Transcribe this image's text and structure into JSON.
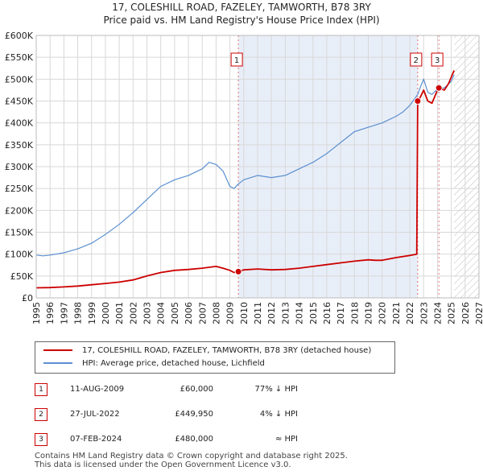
{
  "title": "17, COLESHILL ROAD, FAZELEY, TAMWORTH, B78 3RY",
  "subtitle": "Price paid vs. HM Land Registry's House Price Index (HPI)",
  "chart_data": {
    "type": "line",
    "title": "17, COLESHILL ROAD, FAZELEY, TAMWORTH, B78 3RY",
    "subtitle": "Price paid vs. HM Land Registry's House Price Index (HPI)",
    "xlabel": "",
    "ylabel": "",
    "xlim": [
      1995,
      2027
    ],
    "ylim": [
      0,
      600000
    ],
    "x_ticks": [
      1995,
      1996,
      1997,
      1998,
      1999,
      2000,
      2001,
      2002,
      2003,
      2004,
      2005,
      2006,
      2007,
      2008,
      2009,
      2010,
      2011,
      2012,
      2013,
      2014,
      2015,
      2016,
      2017,
      2018,
      2019,
      2020,
      2021,
      2022,
      2023,
      2024,
      2025,
      2026,
      2027
    ],
    "y_ticks": [
      {
        "value": 0,
        "label": "£0"
      },
      {
        "value": 50000,
        "label": "£50K"
      },
      {
        "value": 100000,
        "label": "£100K"
      },
      {
        "value": 150000,
        "label": "£150K"
      },
      {
        "value": 200000,
        "label": "£200K"
      },
      {
        "value": 250000,
        "label": "£250K"
      },
      {
        "value": 300000,
        "label": "£300K"
      },
      {
        "value": 350000,
        "label": "£350K"
      },
      {
        "value": 400000,
        "label": "£400K"
      },
      {
        "value": 450000,
        "label": "£450K"
      },
      {
        "value": 500000,
        "label": "£500K"
      },
      {
        "value": 550000,
        "label": "£550K"
      },
      {
        "value": 600000,
        "label": "£600K"
      }
    ],
    "grid": true,
    "shaded_region": [
      2009.6,
      2022.57
    ],
    "hatched_from": 2025.2,
    "series": [
      {
        "name": "17, COLESHILL ROAD, FAZELEY, TAMWORTH, B78 3RY (detached house)",
        "color": "#cc0000",
        "x": [
          1995.0,
          1996.0,
          1997.0,
          1998.0,
          1999.0,
          2000.0,
          2001.0,
          2002.0,
          2003.0,
          2004.0,
          2005.0,
          2006.0,
          2007.0,
          2008.0,
          2008.5,
          2009.0,
          2009.3,
          2009.61,
          2010.0,
          2011.0,
          2012.0,
          2013.0,
          2014.0,
          2015.0,
          2016.0,
          2017.0,
          2018.0,
          2019.0,
          2019.5,
          2020.0,
          2021.0,
          2022.0,
          2022.5,
          2022.57,
          2022.7,
          2023.0,
          2023.3,
          2023.6,
          2024.0,
          2024.1,
          2024.5,
          2024.8,
          2025.2
        ],
        "values": [
          23000,
          23500,
          25000,
          27000,
          30000,
          33000,
          36000,
          41000,
          50000,
          58000,
          63000,
          65000,
          68000,
          72000,
          68000,
          63000,
          58000,
          60000,
          64000,
          66000,
          64000,
          65000,
          68000,
          72000,
          76000,
          80000,
          84000,
          87000,
          86000,
          86000,
          92000,
          97000,
          100000,
          449950,
          455000,
          475000,
          450000,
          445000,
          475000,
          480000,
          475000,
          490000,
          520000
        ]
      },
      {
        "name": "HPI: Average price, detached house, Lichfield",
        "color": "#5b8fd0",
        "x": [
          1995.0,
          1995.5,
          1996.0,
          1997.0,
          1998.0,
          1999.0,
          2000.0,
          2001.0,
          2002.0,
          2003.0,
          2004.0,
          2005.0,
          2006.0,
          2007.0,
          2007.5,
          2008.0,
          2008.5,
          2009.0,
          2009.3,
          2009.6,
          2010.0,
          2011.0,
          2012.0,
          2013.0,
          2014.0,
          2015.0,
          2016.0,
          2017.0,
          2018.0,
          2019.0,
          2020.0,
          2021.0,
          2021.5,
          2022.0,
          2022.57,
          2022.8,
          2023.0,
          2023.3,
          2023.6,
          2024.0,
          2024.1,
          2024.5,
          2025.0,
          2025.2
        ],
        "values": [
          98000,
          96000,
          98000,
          103000,
          112000,
          125000,
          145000,
          168000,
          195000,
          225000,
          255000,
          270000,
          280000,
          295000,
          310000,
          305000,
          290000,
          255000,
          250000,
          260000,
          270000,
          280000,
          275000,
          280000,
          295000,
          310000,
          330000,
          355000,
          380000,
          390000,
          400000,
          415000,
          425000,
          440000,
          465000,
          485000,
          500000,
          470000,
          465000,
          478000,
          480000,
          480000,
          495000,
          510000
        ]
      }
    ],
    "transactions": [
      {
        "num": "1",
        "date": "11-AUG-2009",
        "year": 2009.61,
        "value": 60000
      },
      {
        "num": "2",
        "date": "27-JUL-2022",
        "year": 2022.57,
        "value": 449950
      },
      {
        "num": "3",
        "date": "07-FEB-2024",
        "year": 2024.1,
        "value": 480000
      }
    ]
  },
  "legend": {
    "property_label": "17, COLESHILL ROAD, FAZELEY, TAMWORTH, B78 3RY (detached house)",
    "property_color": "#cc0000",
    "hpi_label": "HPI: Average price, detached house, Lichfield",
    "hpi_color": "#5b8fd0"
  },
  "transactions_table": [
    {
      "num": "1",
      "date": "11-AUG-2009",
      "price": "£60,000",
      "hpi": "77% ↓ HPI"
    },
    {
      "num": "2",
      "date": "27-JUL-2022",
      "price": "£449,950",
      "hpi": "4% ↓ HPI"
    },
    {
      "num": "3",
      "date": "07-FEB-2024",
      "price": "£480,000",
      "hpi": "≈ HPI"
    }
  ],
  "footer": {
    "line1": "Contains HM Land Registry data © Crown copyright and database right 2025.",
    "line2": "This data is licensed under the Open Government Licence v3.0."
  }
}
